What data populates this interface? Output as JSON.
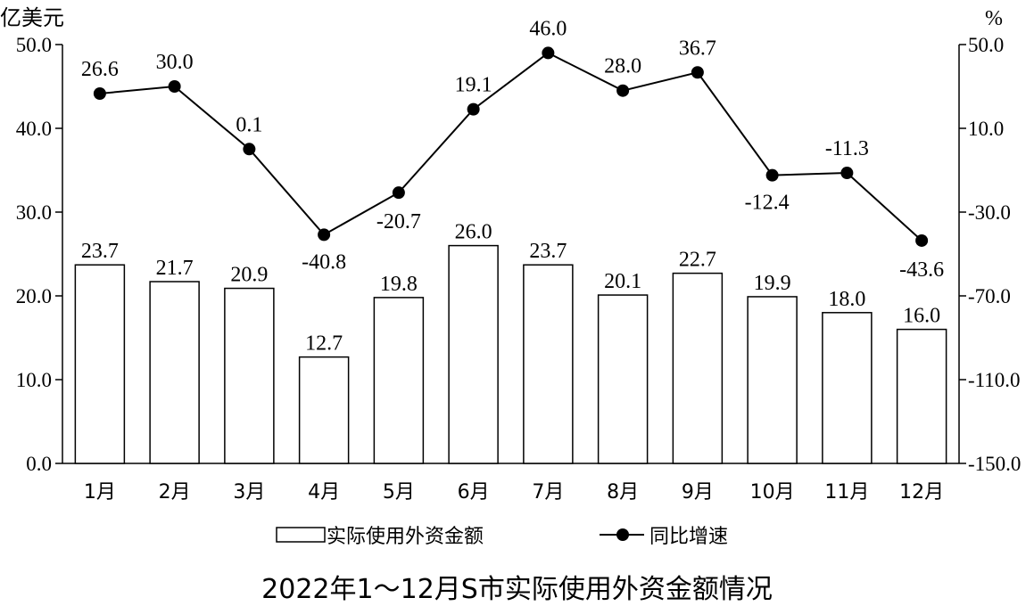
{
  "chart_data": {
    "type": "bar",
    "title": "2022年1～12月S市实际使用外资金额情况",
    "categories": [
      "1月",
      "2月",
      "3月",
      "4月",
      "5月",
      "6月",
      "7月",
      "8月",
      "9月",
      "10月",
      "11月",
      "12月"
    ],
    "left_axis": {
      "unit": "亿美元",
      "ylim": [
        0,
        50
      ],
      "ticks": [
        "0.0",
        "10.0",
        "20.0",
        "30.0",
        "40.0",
        "50.0"
      ]
    },
    "right_axis": {
      "unit": "%",
      "ylim": [
        -150,
        50
      ],
      "ticks": [
        "-150.0",
        "-110.0",
        "-70.0",
        "-30.0",
        "10.0",
        "50.0"
      ]
    },
    "series": [
      {
        "name": "实际使用外资金额",
        "type": "bar",
        "axis": "left",
        "values": [
          23.7,
          21.7,
          20.9,
          12.7,
          19.8,
          26.0,
          23.7,
          20.1,
          22.7,
          19.9,
          18.0,
          16.0
        ],
        "labels": [
          "23.7",
          "21.7",
          "20.9",
          "12.7",
          "19.8",
          "26.0",
          "23.7",
          "20.1",
          "22.7",
          "19.9",
          "18.0",
          "16.0"
        ]
      },
      {
        "name": "同比增速",
        "type": "line",
        "axis": "right",
        "values": [
          26.6,
          30.0,
          0.1,
          -40.8,
          -20.7,
          19.1,
          46.0,
          28.0,
          36.7,
          -12.4,
          -11.3,
          -43.6
        ],
        "labels": [
          "26.6",
          "30.0",
          "0.1",
          "-40.8",
          "-20.7",
          "19.1",
          "46.0",
          "28.0",
          "36.7",
          "-12.4",
          "-11.3",
          "-43.6"
        ]
      }
    ],
    "legend_position": "bottom",
    "grid": false,
    "colors": {
      "bar_fill": "#ffffff",
      "stroke": "#000000",
      "line": "#000000"
    }
  }
}
